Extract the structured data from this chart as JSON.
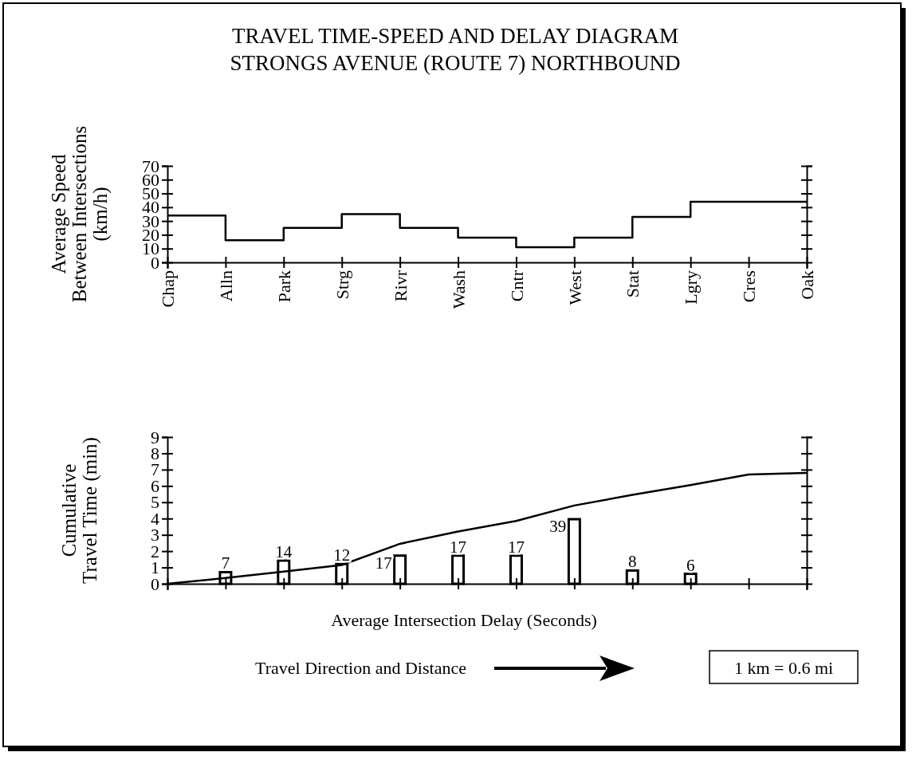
{
  "chart_data": [
    {
      "type": "step",
      "title": "TRAVEL TIME-SPEED AND DELAY DIAGRAM",
      "subtitle": "STRONGS AVENUE (ROUTE 7) NORTHBOUND",
      "ylabel": "Average Speed Between Intersections (km/h)",
      "categories": [
        "Chap",
        "Alln",
        "Park",
        "Strg",
        "Rivr",
        "Wash",
        "Cntr",
        "West",
        "Stat",
        "Lgry",
        "Cres",
        "Oak"
      ],
      "values": [
        34,
        16,
        25,
        35,
        25,
        18,
        11,
        18,
        33,
        44,
        44,
        44
      ],
      "color": "#000000",
      "ylim": [
        0,
        70
      ],
      "yticks": [
        0,
        10,
        20,
        30,
        40,
        50,
        60,
        70
      ]
    },
    {
      "type": "line",
      "ylabel": "Cumulative Travel Time (min)",
      "categories": [
        null,
        null,
        null,
        null,
        null,
        null,
        null,
        null,
        null,
        null,
        null,
        null
      ],
      "values": [
        0,
        0.35,
        0.75,
        1.15,
        2.45,
        3.2,
        3.85,
        4.8,
        5.45,
        6.05,
        6.7,
        6.8
      ],
      "color": "#000000",
      "ylim": [
        0,
        9
      ],
      "yticks": [
        0,
        1,
        2,
        3,
        4,
        5,
        6,
        7,
        8,
        9
      ],
      "tick_labels": "y",
      "annotations": [
        "Travel Direction and Distance",
        "1 km = 0.6 mi"
      ]
    },
    {
      "type": "bar",
      "xlabel": "Average Intersection Delay (Seconds)",
      "categories": [
        null,
        null,
        null,
        null,
        null,
        null,
        null,
        null,
        null,
        null,
        null,
        null
      ],
      "values": [
        null,
        7,
        14,
        12,
        17,
        17,
        17,
        39,
        8,
        6,
        null,
        null
      ],
      "color": "#000000",
      "data_labels": true,
      "tick_labels": false
    }
  ]
}
